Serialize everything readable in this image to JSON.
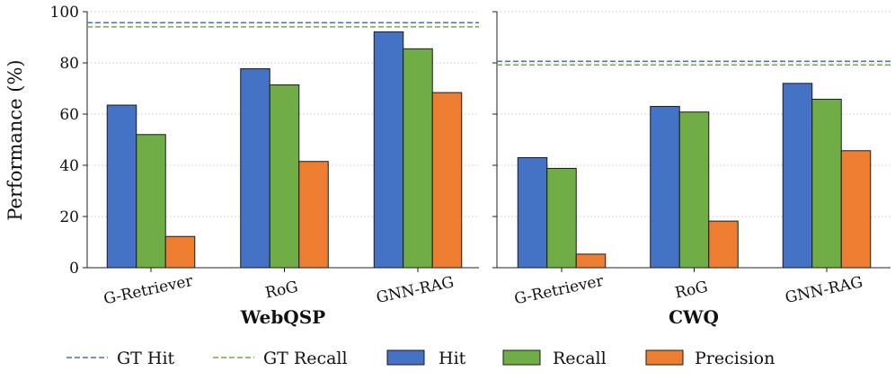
{
  "chart_data": {
    "type": "bar",
    "ylabel": "Performance (%)",
    "ylim": [
      0,
      100
    ],
    "yticks": [
      0,
      20,
      40,
      60,
      80,
      100
    ],
    "grid": "horizontal-dotted",
    "legend_position": "bottom",
    "colors": {
      "Hit": "#4472c4",
      "Recall": "#70ad47",
      "Precision": "#ed7d31",
      "GT Hit": "#4472c4",
      "GT Recall": "#70ad47"
    },
    "legend": [
      {
        "label": "GT Hit",
        "kind": "dashed-line"
      },
      {
        "label": "GT Recall",
        "kind": "dashed-line"
      },
      {
        "label": "Hit",
        "kind": "box"
      },
      {
        "label": "Recall",
        "kind": "box"
      },
      {
        "label": "Precision",
        "kind": "box"
      }
    ],
    "panels": [
      {
        "title": "WebQSP",
        "categories": [
          "G-Retriever",
          "RoG",
          "GNN-RAG"
        ],
        "series": [
          {
            "name": "Hit",
            "values": [
              63.5,
              77.7,
              92.1
            ]
          },
          {
            "name": "Recall",
            "values": [
              52.0,
              71.4,
              85.5
            ]
          },
          {
            "name": "Precision",
            "values": [
              12.2,
              41.5,
              68.4
            ]
          }
        ],
        "reference_lines": [
          {
            "name": "GT Hit",
            "value": 95.7
          },
          {
            "name": "GT Recall",
            "value": 94.1
          }
        ]
      },
      {
        "title": "CWQ",
        "categories": [
          "G-Retriever",
          "RoG",
          "GNN-RAG"
        ],
        "series": [
          {
            "name": "Hit",
            "values": [
              43.0,
              63.0,
              72.0
            ]
          },
          {
            "name": "Recall",
            "values": [
              38.8,
              60.8,
              65.8
            ]
          },
          {
            "name": "Precision",
            "values": [
              5.3,
              18.2,
              45.7
            ]
          }
        ],
        "reference_lines": [
          {
            "name": "GT Hit",
            "value": 80.6
          },
          {
            "name": "GT Recall",
            "value": 79.2
          }
        ]
      }
    ]
  }
}
